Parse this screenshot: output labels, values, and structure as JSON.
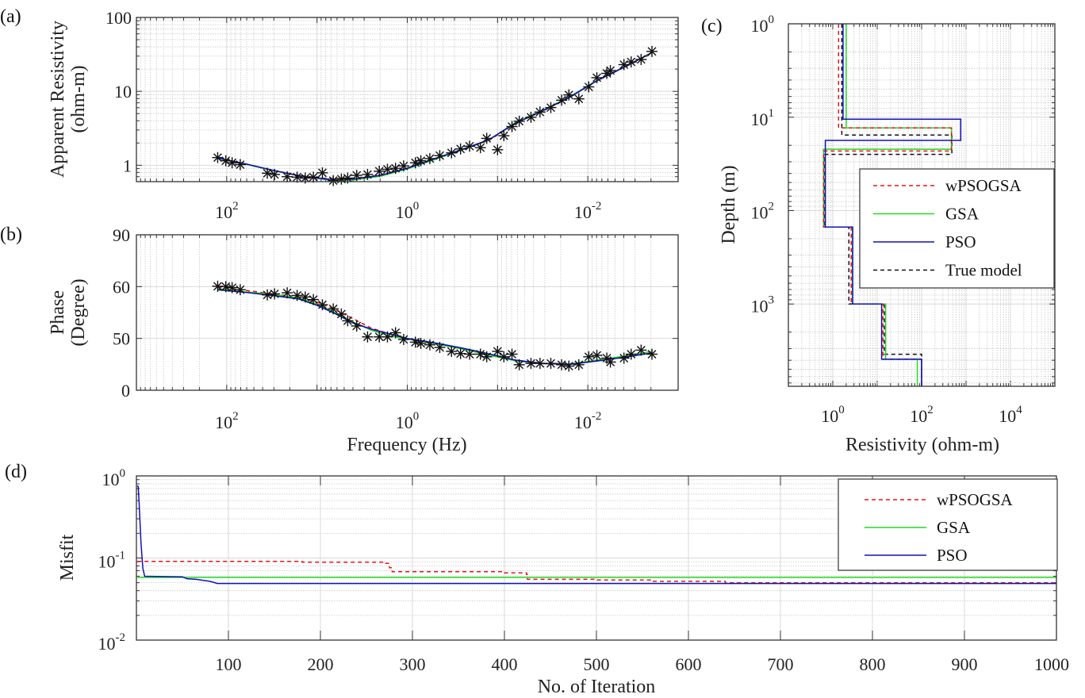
{
  "colors": {
    "wPSOGSA": "#e8141a",
    "GSA": "#1fdc1f",
    "PSO": "#1010b8",
    "True model": "#111111",
    "observed": "#111111",
    "grid_major": "#d9d9d9",
    "grid_minor": "#c8c8c8",
    "axes": "#333333"
  },
  "chart_data": [
    {
      "id": "a",
      "panel_label": "(a)",
      "type": "line",
      "xscale": "log",
      "yscale": "log",
      "x_reversed": true,
      "xlim": [
        0.001,
        1000
      ],
      "ylim": [
        0.6,
        100
      ],
      "grid": true,
      "xlabel": "",
      "ylabel_lines": [
        "Apparent Resistivity",
        "(ohm-m)"
      ],
      "xticks": [
        {
          "value": 100,
          "base": "10",
          "exp": "2"
        },
        {
          "value": 1,
          "base": "10",
          "exp": "0"
        },
        {
          "value": 0.01,
          "base": "10",
          "exp": "-2"
        }
      ],
      "yticks": [
        {
          "value": 1,
          "label": "1"
        },
        {
          "value": 10,
          "label": "10"
        },
        {
          "value": 100,
          "label": "100"
        }
      ],
      "observed": {
        "name": "Observed",
        "marker": "asterisk",
        "log10_frequency": [
          2.1,
          2.01,
          1.94,
          1.85,
          1.55,
          1.47,
          1.33,
          1.22,
          1.13,
          1.04,
          0.94,
          0.82,
          0.73,
          0.66,
          0.56,
          0.44,
          0.31,
          0.22,
          0.13,
          0.04,
          -0.09,
          -0.15,
          -0.25,
          -0.36,
          -0.49,
          -0.59,
          -0.69,
          -0.81,
          -0.88,
          -1.0,
          -1.07,
          -1.16,
          -1.24,
          -1.37,
          -1.47,
          -1.59,
          -1.71,
          -1.79,
          -1.9,
          -2.01,
          -2.1,
          -2.21,
          -2.25,
          -2.4,
          -2.48,
          -2.59,
          -2.71
        ],
        "values": [
          1.27,
          1.15,
          1.08,
          1.02,
          0.78,
          0.75,
          0.7,
          0.69,
          0.67,
          0.69,
          0.79,
          0.62,
          0.65,
          0.67,
          0.73,
          0.75,
          0.83,
          0.88,
          0.91,
          0.98,
          1.08,
          1.15,
          1.23,
          1.35,
          1.47,
          1.66,
          1.81,
          1.73,
          2.31,
          1.62,
          2.51,
          3.34,
          3.94,
          4.46,
          5.25,
          6.03,
          7.59,
          8.95,
          7.91,
          11.5,
          15.3,
          17.5,
          19.1,
          23.0,
          25.0,
          27.0,
          34.7
        ]
      },
      "series": [
        {
          "name": "wPSOGSA",
          "style": "dashed",
          "log10_frequency": [
            2.1,
            1.8,
            1.5,
            1.2,
            0.9,
            0.6,
            0.3,
            0.0,
            -0.3,
            -0.6,
            -0.9,
            -1.2,
            -1.5,
            -1.8,
            -2.1,
            -2.4,
            -2.71
          ],
          "values": [
            1.25,
            1.05,
            0.86,
            0.73,
            0.66,
            0.66,
            0.74,
            0.92,
            1.22,
            1.62,
            2.15,
            3.7,
            5.4,
            8.3,
            13.8,
            21.0,
            32.5
          ]
        },
        {
          "name": "GSA",
          "style": "solid",
          "log10_frequency": [
            2.1,
            1.8,
            1.5,
            1.2,
            0.9,
            0.6,
            0.3,
            0.0,
            -0.3,
            -0.6,
            -0.9,
            -1.2,
            -1.5,
            -1.8,
            -2.1,
            -2.4,
            -2.71
          ],
          "values": [
            1.24,
            1.04,
            0.85,
            0.72,
            0.64,
            0.63,
            0.71,
            0.89,
            1.19,
            1.6,
            2.18,
            3.8,
            5.55,
            8.5,
            14.0,
            21.4,
            33.0
          ]
        },
        {
          "name": "PSO",
          "style": "solid",
          "log10_frequency": [
            2.1,
            1.8,
            1.5,
            1.2,
            0.9,
            0.6,
            0.3,
            0.0,
            -0.3,
            -0.6,
            -0.9,
            -1.2,
            -1.5,
            -1.8,
            -2.1,
            -2.4,
            -2.71
          ],
          "values": [
            1.25,
            1.05,
            0.86,
            0.72,
            0.65,
            0.65,
            0.73,
            0.91,
            1.22,
            1.63,
            2.2,
            3.72,
            5.45,
            8.35,
            13.9,
            21.2,
            33.5
          ]
        }
      ]
    },
    {
      "id": "b",
      "panel_label": "(b)",
      "type": "line",
      "xscale": "log",
      "yscale": "linear-by-ticks",
      "x_reversed": true,
      "xlim": [
        0.001,
        1000
      ],
      "grid": true,
      "xlabel": "Frequency (Hz)",
      "ylabel_lines": [
        "Phase",
        "(Degree)"
      ],
      "xticks": [
        {
          "value": 100,
          "base": "10",
          "exp": "2"
        },
        {
          "value": 1,
          "base": "10",
          "exp": "0"
        },
        {
          "value": 0.01,
          "base": "10",
          "exp": "-2"
        }
      ],
      "yticks": [
        {
          "value": 0,
          "label": "0"
        },
        {
          "value": 50,
          "label": "50"
        },
        {
          "value": 60,
          "label": "60"
        },
        {
          "value": 90,
          "label": "90"
        }
      ],
      "observed": {
        "name": "Observed",
        "marker": "asterisk",
        "log10_frequency": [
          2.1,
          2.01,
          1.94,
          1.85,
          1.55,
          1.47,
          1.33,
          1.22,
          1.13,
          1.04,
          0.94,
          0.82,
          0.73,
          0.66,
          0.56,
          0.44,
          0.31,
          0.22,
          0.13,
          0.04,
          -0.09,
          -0.15,
          -0.25,
          -0.36,
          -0.49,
          -0.59,
          -0.69,
          -0.81,
          -0.88,
          -1.0,
          -1.07,
          -1.16,
          -1.24,
          -1.37,
          -1.47,
          -1.59,
          -1.71,
          -1.79,
          -1.9,
          -2.01,
          -2.1,
          -2.21,
          -2.25,
          -2.4,
          -2.48,
          -2.59,
          -2.71
        ],
        "values": [
          60.2,
          60.0,
          59.8,
          59.4,
          58.4,
          58.6,
          58.8,
          58.3,
          58.0,
          57.5,
          56.5,
          55.7,
          54.7,
          53.4,
          52.4,
          50.3,
          50.3,
          50.3,
          51.1,
          49.0,
          46.4,
          45.2,
          43.8,
          41.3,
          37.5,
          35.4,
          34.8,
          34.8,
          32.3,
          37.5,
          32.3,
          34.8,
          24.6,
          25.9,
          25.9,
          25.9,
          24.6,
          23.3,
          24.6,
          32.3,
          33.6,
          31.0,
          27.2,
          31.0,
          34.8,
          38.7,
          34.8
        ]
      },
      "series": [
        {
          "name": "wPSOGSA",
          "style": "dashed",
          "log10_frequency": [
            2.1,
            1.8,
            1.5,
            1.2,
            1.0,
            0.8,
            0.6,
            0.4,
            0.2,
            0.0,
            -0.3,
            -0.6,
            -0.9,
            -1.2,
            -1.5,
            -1.8,
            -2.1,
            -2.4,
            -2.71
          ],
          "values": [
            59.9,
            59.3,
            58.6,
            58.0,
            57.0,
            55.6,
            53.8,
            52.0,
            50.9,
            49.8,
            45.5,
            40.5,
            34.8,
            29.0,
            26.0,
            25.5,
            28.5,
            32.0,
            36.5
          ]
        },
        {
          "name": "GSA",
          "style": "solid",
          "log10_frequency": [
            2.1,
            1.8,
            1.5,
            1.2,
            1.0,
            0.8,
            0.6,
            0.4,
            0.2,
            0.0,
            -0.3,
            -0.6,
            -0.9,
            -1.2,
            -1.5,
            -1.8,
            -2.1,
            -2.4,
            -2.71
          ],
          "values": [
            59.6,
            59.0,
            58.5,
            57.8,
            56.6,
            55.0,
            53.2,
            51.6,
            50.5,
            49.5,
            45.0,
            40.0,
            34.0,
            28.3,
            25.6,
            25.3,
            29.0,
            32.8,
            37.5
          ]
        },
        {
          "name": "PSO",
          "style": "solid",
          "log10_frequency": [
            2.1,
            1.8,
            1.5,
            1.2,
            1.0,
            0.8,
            0.6,
            0.4,
            0.2,
            0.0,
            -0.3,
            -0.6,
            -0.9,
            -1.2,
            -1.5,
            -1.8,
            -2.1,
            -2.4,
            -2.71
          ],
          "values": [
            59.4,
            58.9,
            58.3,
            57.6,
            56.4,
            54.8,
            53.0,
            51.8,
            50.9,
            49.9,
            45.8,
            40.8,
            35.2,
            29.0,
            25.8,
            25.0,
            28.2,
            31.8,
            36.0
          ]
        }
      ]
    },
    {
      "id": "c",
      "panel_label": "(c)",
      "type": "line",
      "xscale": "log",
      "yscale": "log",
      "y_reversed": true,
      "xlim": [
        0.1,
        100000
      ],
      "ylim": [
        1,
        7600
      ],
      "grid": true,
      "xlabel": "Resistivity (ohm-m)",
      "ylabel": "Depth (m)",
      "xticks": [
        {
          "value": 1,
          "base": "10",
          "exp": "0"
        },
        {
          "value": 100,
          "base": "10",
          "exp": "2"
        },
        {
          "value": 10000,
          "base": "10",
          "exp": "4"
        }
      ],
      "yticks": [
        {
          "value": 1,
          "base": "10",
          "exp": "0"
        },
        {
          "value": 10,
          "base": "10",
          "exp": "1"
        },
        {
          "value": 100,
          "base": "10",
          "exp": "2"
        },
        {
          "value": 1000,
          "base": "10",
          "exp": "3"
        }
      ],
      "legend": {
        "position": "center-right",
        "entries": [
          "wPSOGSA",
          "GSA",
          "PSO",
          "True model"
        ]
      },
      "series": [
        {
          "name": "wPSOGSA",
          "style": "dashed",
          "resistivity": [
            1.35,
            470,
            0.62,
            2.6,
            13.5,
            100
          ],
          "layer_bottoms": [
            13.0,
            23.0,
            150,
            1000,
            3900
          ]
        },
        {
          "name": "GSA",
          "style": "solid",
          "resistivity": [
            2.0,
            470,
            0.62,
            2.8,
            15.5,
            80
          ],
          "layer_bottoms": [
            13.0,
            22.0,
            150,
            1000,
            3900
          ]
        },
        {
          "name": "PSO",
          "style": "solid",
          "resistivity": [
            1.7,
            760,
            0.68,
            2.8,
            12.6,
            100
          ],
          "layer_bottoms": [
            10.5,
            17.7,
            150,
            1000,
            3900
          ]
        },
        {
          "name": "True model",
          "style": "dashed",
          "resistivity": [
            1.6,
            480,
            0.64,
            2.3,
            14.5,
            100
          ],
          "layer_bottoms": [
            15.5,
            25.0,
            150,
            1000,
            3450
          ]
        }
      ]
    },
    {
      "id": "d",
      "panel_label": "(d)",
      "type": "line",
      "xscale": "linear",
      "yscale": "log",
      "xlim": [
        0,
        1000
      ],
      "ylim": [
        0.01,
        1
      ],
      "grid": true,
      "xlabel": "No. of Iteration",
      "ylabel": "Misfit",
      "xticks": [
        {
          "value": 100,
          "label": "100"
        },
        {
          "value": 200,
          "label": "200"
        },
        {
          "value": 300,
          "label": "300"
        },
        {
          "value": 400,
          "label": "400"
        },
        {
          "value": 500,
          "label": "500"
        },
        {
          "value": 600,
          "label": "600"
        },
        {
          "value": 700,
          "label": "700"
        },
        {
          "value": 800,
          "label": "800"
        },
        {
          "value": 900,
          "label": "900"
        },
        {
          "value": 1000,
          "label": "1000"
        }
      ],
      "yticks": [
        {
          "value": 0.01,
          "base": "10",
          "exp": "-2"
        },
        {
          "value": 0.1,
          "base": "10",
          "exp": "-1"
        },
        {
          "value": 1,
          "base": "10",
          "exp": "0"
        }
      ],
      "legend": {
        "position": "top-right",
        "entries": [
          "wPSOGSA",
          "GSA",
          "PSO"
        ]
      },
      "series": [
        {
          "name": "wPSOGSA",
          "style": "dashed",
          "x": [
            1,
            178,
            180,
            270,
            275,
            278,
            400,
            424,
            425,
            500,
            560,
            640,
            1000
          ],
          "y": [
            0.091,
            0.091,
            0.089,
            0.086,
            0.076,
            0.068,
            0.066,
            0.063,
            0.055,
            0.054,
            0.052,
            0.05,
            0.05
          ]
        },
        {
          "name": "GSA",
          "style": "solid",
          "x": [
            1,
            1000
          ],
          "y": [
            0.058,
            0.058
          ]
        },
        {
          "name": "PSO",
          "style": "solid",
          "x": [
            1,
            2,
            3,
            5,
            7,
            9,
            50,
            55,
            65,
            80,
            88,
            1000
          ],
          "y": [
            0.76,
            0.74,
            0.45,
            0.15,
            0.075,
            0.06,
            0.059,
            0.056,
            0.055,
            0.052,
            0.049,
            0.049
          ]
        }
      ]
    }
  ]
}
